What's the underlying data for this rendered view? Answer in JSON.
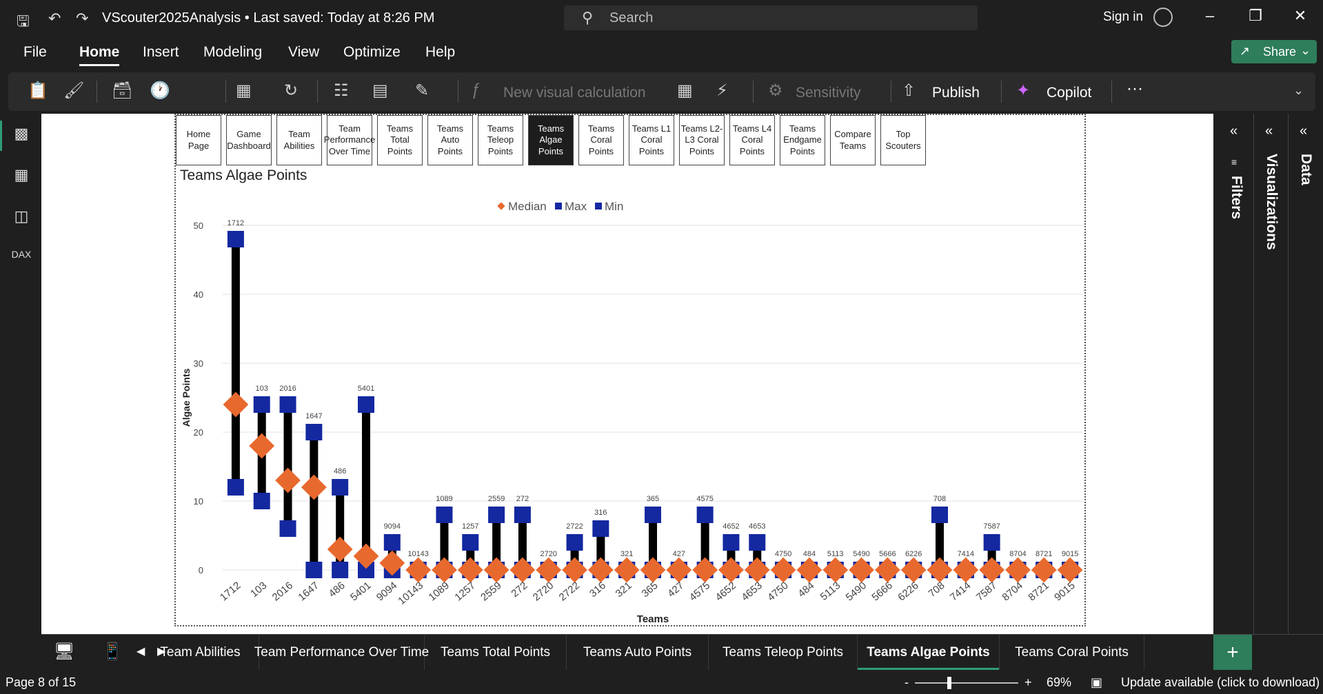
{
  "titlebar": {
    "file_title": "VScouter2025Analysis • Last saved: Today at 8:26 PM",
    "search_placeholder": "Search",
    "sign_in": "Sign in"
  },
  "menu": [
    "File",
    "Home",
    "Insert",
    "Modeling",
    "View",
    "Optimize",
    "Help"
  ],
  "menu_active": "Home",
  "share_label": "Share",
  "ribbon": {
    "new_visual_calc": "New visual calculation",
    "sensitivity": "Sensitivity",
    "publish": "Publish",
    "copilot": "Copilot",
    "more": "···"
  },
  "nav_buttons": [
    {
      "label": "Home Page"
    },
    {
      "label": "Game Dashboard"
    },
    {
      "label": "Team Abilities"
    },
    {
      "label": "Team Performance Over Time"
    },
    {
      "label": "Teams Total Points"
    },
    {
      "label": "Teams Auto Points"
    },
    {
      "label": "Teams Teleop Points"
    },
    {
      "label": "Teams Algae Points"
    },
    {
      "label": "Teams Coral Points"
    },
    {
      "label": "Teams L1 Coral Points"
    },
    {
      "label": "Teams L2-L3 Coral Points"
    },
    {
      "label": "Teams L4 Coral Points"
    },
    {
      "label": "Teams Endgame Points"
    },
    {
      "label": "Compare Teams"
    },
    {
      "label": "Top Scouters"
    }
  ],
  "nav_active": "Teams Algae Points",
  "panes": {
    "filters": "Filters",
    "visualizations": "Visualizations",
    "data": "Data"
  },
  "page_tabs": [
    "Team Abilities",
    "Team Performance Over Time",
    "Teams Total Points",
    "Teams Auto Points",
    "Teams Teleop Points",
    "Teams Algae Points",
    "Teams Coral Points"
  ],
  "page_tab_active": "Teams Algae Points",
  "status": {
    "page": "Page 8 of 15",
    "zoom": "69%",
    "zoom_minus": "-",
    "zoom_plus": "+",
    "update": "Update available (click to download)"
  },
  "colors": {
    "median": "#E8692E",
    "max": "#1428A0",
    "min": "#1428A0",
    "range_bar": "#000000",
    "accent": "#2e7d5b"
  },
  "chart_data": {
    "type": "scatter",
    "title": "Teams Algae Points",
    "xlabel": "Teams",
    "ylabel": "Algae Points",
    "ylim": [
      0,
      50
    ],
    "yticks": [
      0,
      10,
      20,
      30,
      40,
      50
    ],
    "legend": [
      "Median",
      "Max",
      "Min"
    ],
    "legend_position": "top-center",
    "categories": [
      "1712",
      "103",
      "2016",
      "1647",
      "486",
      "5401",
      "9094",
      "10143",
      "1089",
      "1257",
      "2559",
      "272",
      "2720",
      "2722",
      "316",
      "321",
      "365",
      "427",
      "4575",
      "4652",
      "4653",
      "4750",
      "484",
      "5113",
      "5490",
      "5666",
      "6226",
      "708",
      "7414",
      "7587",
      "8704",
      "8721",
      "9015"
    ],
    "series": [
      {
        "name": "Median",
        "values": [
          24,
          18,
          13,
          12,
          3,
          2,
          1,
          0,
          0,
          0,
          0,
          0,
          0,
          0,
          0,
          0,
          0,
          0,
          0,
          0,
          0,
          0,
          0,
          0,
          0,
          0,
          0,
          0,
          0,
          0,
          0,
          0,
          0
        ]
      },
      {
        "name": "Max",
        "values": [
          48,
          24,
          24,
          20,
          12,
          24,
          4,
          0,
          8,
          4,
          8,
          8,
          0,
          4,
          6,
          0,
          8,
          0,
          8,
          4,
          4,
          0,
          0,
          0,
          0,
          0,
          0,
          8,
          0,
          4,
          0,
          0,
          0
        ]
      },
      {
        "name": "Min",
        "values": [
          12,
          10,
          6,
          0,
          0,
          0,
          0,
          0,
          0,
          0,
          0,
          0,
          0,
          0,
          0,
          0,
          0,
          0,
          0,
          0,
          0,
          0,
          0,
          0,
          0,
          0,
          0,
          0,
          0,
          0,
          0,
          0,
          0
        ]
      }
    ]
  }
}
